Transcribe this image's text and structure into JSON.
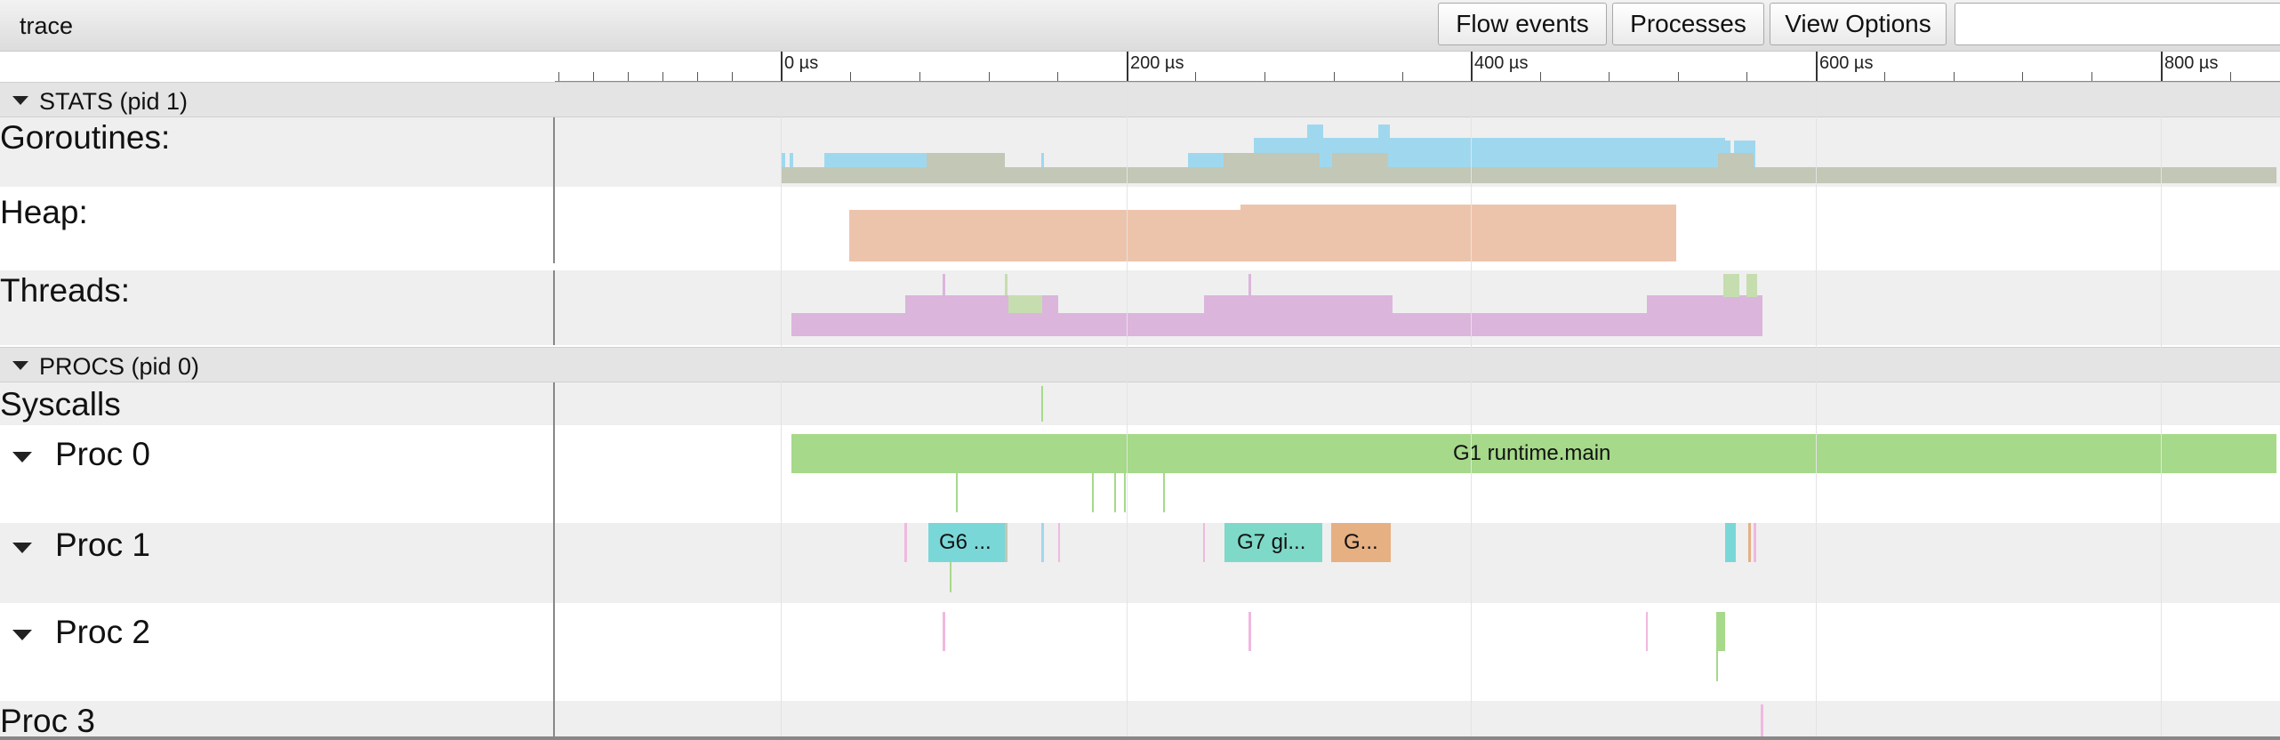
{
  "toolbar": {
    "title": "trace",
    "flow_events": "Flow events",
    "processes": "Processes",
    "view_options": "View Options",
    "search_value": ""
  },
  "ruler": {
    "labels": [
      "0 µs",
      "200 µs",
      "400 µs",
      "600 µs",
      "800 µs"
    ]
  },
  "groups": {
    "stats": "STATS (pid 1)",
    "procs": "PROCS (pid 0)"
  },
  "tracks": {
    "goroutines": "Goroutines:",
    "heap": "Heap:",
    "threads": "Threads:",
    "syscalls": "Syscalls",
    "proc0": "Proc 0",
    "proc1": "Proc 1",
    "proc2": "Proc 2",
    "proc3": "Proc 3"
  },
  "slices": {
    "g1": "G1 runtime.main",
    "g6": "G6 ...",
    "g7": "G7 gi...",
    "g_other": "G..."
  },
  "colors": {
    "counter_blue": "#9fd8ee",
    "counter_gray": "#c2c7b6",
    "heap_orange": "#ecc4ac",
    "threads_purple": "#dbb5dc",
    "threads_green": "#c6ddb0",
    "g1_green": "#a6d98a",
    "g6_cyan": "#7ad7d8",
    "g7_teal": "#7fd9c8",
    "g_orange": "#e6b083"
  }
}
